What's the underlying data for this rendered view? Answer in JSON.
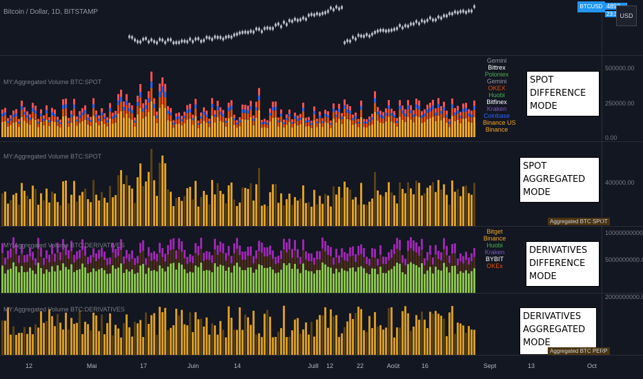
{
  "header": {
    "symbol_description": "Bitcoin / Dollar, 1D, BITSTAMP",
    "price_badge_symbol": "BTCUSD",
    "price_badge_value": "4892...",
    "price_badge_time": "23:35...",
    "currency_button": "USD"
  },
  "panes": [
    {
      "title": "MY:Aggregated Volume BTC:SPOT",
      "note_lines": [
        "SPOT",
        "DIFFERENCE MODE"
      ],
      "axis_ticks": [
        "500000.00",
        "250000.00",
        "0.00"
      ],
      "legend": [
        {
          "label": "Gemini",
          "color": "#9598a1"
        },
        {
          "label": "Bittrex",
          "color": "#ffffff"
        },
        {
          "label": "Poloniex",
          "color": "#4caf50"
        },
        {
          "label": "Gemini",
          "color": "#9598a1"
        },
        {
          "label": "OKEX",
          "color": "#e65100"
        },
        {
          "label": "Huobi",
          "color": "#4caf50"
        },
        {
          "label": "Bitfinex",
          "color": "#ffffff"
        },
        {
          "label": "Kraken",
          "color": "#7e57c2"
        },
        {
          "label": "Coinbase",
          "color": "#2962ff"
        },
        {
          "label": "Binance US",
          "color": "#f5a623"
        },
        {
          "label": "Binance",
          "color": "#f5a623"
        }
      ],
      "badge": ""
    },
    {
      "title": "MY:Aggregated Volume BTC:SPOT",
      "note_lines": [
        "SPOT",
        "AGGREGATED MODE"
      ],
      "axis_ticks": [
        "400000.00"
      ],
      "legend": [],
      "badge": "Aggregated BTC SPOT"
    },
    {
      "title": "MY:Aggregated Volume BTC:DERIVATIVES",
      "note_lines": [
        "DERIVATIVES",
        "DIFFERENCE MODE"
      ],
      "axis_ticks": [
        "10000000000.00",
        "5000000000.00"
      ],
      "legend": [
        {
          "label": "Bitget",
          "color": "#f5a623"
        },
        {
          "label": "Binance",
          "color": "#f5a623"
        },
        {
          "label": "Huobi",
          "color": "#4caf50"
        },
        {
          "label": "Kraken",
          "color": "#7e57c2"
        },
        {
          "label": "BYBIT",
          "color": "#ffffff"
        },
        {
          "label": "OKEx",
          "color": "#e65100"
        }
      ],
      "badge": ""
    },
    {
      "title": "MY:Aggregated Volume BTC:DERIVATIVES",
      "note_lines": [
        "DERIVATIVES",
        "AGGREGATED MODE"
      ],
      "axis_ticks": [
        "2000000000.00"
      ],
      "legend": [],
      "badge": "Aggregated BTC PERP"
    }
  ],
  "time_axis": [
    "12",
    "Mai",
    "17",
    "Juin",
    "14",
    "Juill",
    "12",
    "22",
    "Août",
    "16",
    "Sept",
    "13",
    "Oct"
  ],
  "colors": {
    "background": "#131722",
    "spot_bar": "#f5a623",
    "spot_bar_dim": "#5a4214",
    "deriv_bar": "#8bc34a",
    "badge": "#4a3410",
    "price_badge": "#2196f3"
  }
}
